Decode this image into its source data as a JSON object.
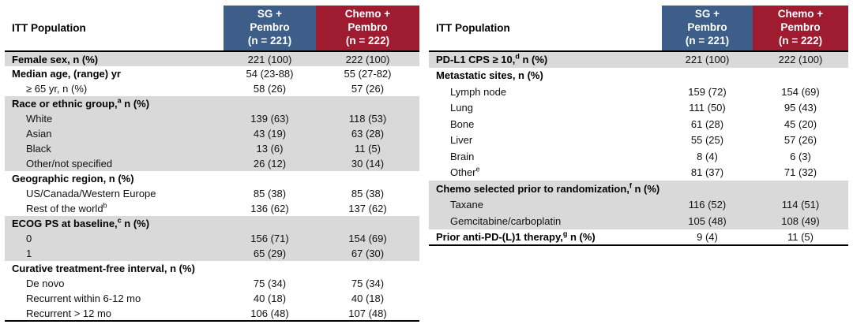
{
  "colors": {
    "arm1_header_bg": "#3E5E8A",
    "arm2_header_bg": "#9E1B30",
    "shade_row_bg": "#D9D9D9",
    "header_text": "#FFFFFF"
  },
  "chart_data": [
    {
      "type": "table",
      "title": "ITT Population — demographics and disease history",
      "header": {
        "population_label": "ITT Population",
        "arm1_label": "SG +\nPembro\n(n = 221)",
        "arm2_label": "Chemo +\nPembro\n(n = 222)"
      },
      "rows": [
        {
          "label": "Female sex, n (%)",
          "bold": true,
          "shade": true,
          "v1": "221 (100)",
          "v2": "222 (100)"
        },
        {
          "label": "Median age, (range) yr",
          "bold": true,
          "v1": "54 (23-88)",
          "v2": "55 (27-82)"
        },
        {
          "label": "≥ 65 yr, n (%)",
          "indent": true,
          "v1": "58 (26)",
          "v2": "57 (26)"
        },
        {
          "label": "Race or ethnic group,",
          "sup": "a",
          "label2": " n (%)",
          "bold": true,
          "shade": true,
          "v1": "",
          "v2": ""
        },
        {
          "label": "White",
          "indent": true,
          "shade": true,
          "v1": "139 (63)",
          "v2": "118 (53)"
        },
        {
          "label": "Asian",
          "indent": true,
          "shade": true,
          "v1": "43 (19)",
          "v2": "63 (28)"
        },
        {
          "label": "Black",
          "indent": true,
          "shade": true,
          "v1": "13 (6)",
          "v2": "11 (5)"
        },
        {
          "label": "Other/not specified",
          "indent": true,
          "shade": true,
          "v1": "26 (12)",
          "v2": "30 (14)"
        },
        {
          "label": "Geographic region, n (%)",
          "bold": true,
          "v1": "",
          "v2": ""
        },
        {
          "label": "US/Canada/Western Europe",
          "indent": true,
          "v1": "85 (38)",
          "v2": "85 (38)"
        },
        {
          "label": "Rest of the world",
          "sup": "b",
          "indent": true,
          "v1": "136 (62)",
          "v2": "137 (62)"
        },
        {
          "label": "ECOG PS at baseline,",
          "sup": "c",
          "label2": " n (%)",
          "bold": true,
          "shade": true,
          "v1": "",
          "v2": ""
        },
        {
          "label": "0",
          "indent": true,
          "shade": true,
          "v1": "156 (71)",
          "v2": "154 (69)"
        },
        {
          "label": "1",
          "indent": true,
          "shade": true,
          "v1": "65 (29)",
          "v2": "67 (30)"
        },
        {
          "label": "Curative treatment-free interval, n (%)",
          "bold": true,
          "v1": "",
          "v2": ""
        },
        {
          "label": "De novo",
          "indent": true,
          "v1": "75 (34)",
          "v2": "75 (34)"
        },
        {
          "label": "Recurrent within 6-12 mo",
          "indent": true,
          "v1": "40 (18)",
          "v2": "40 (18)"
        },
        {
          "label": "Recurrent > 12 mo",
          "indent": true,
          "v1": "106 (48)",
          "v2": "107 (48)"
        }
      ]
    },
    {
      "type": "table",
      "title": "ITT Population — disease characteristics and prior therapy",
      "header": {
        "population_label": "ITT Population",
        "arm1_label": "SG +\nPembro\n(n = 221)",
        "arm2_label": "Chemo +\nPembro\n(n = 222)"
      },
      "rows": [
        {
          "label": "PD-L1 CPS ≥ 10,",
          "sup": "d",
          "label2": " n (%)",
          "bold": true,
          "shade": true,
          "v1": "221 (100)",
          "v2": "222 (100)"
        },
        {
          "label": "Metastatic sites, n (%)",
          "bold": true,
          "v1": "",
          "v2": ""
        },
        {
          "label": "Lymph node",
          "indent": true,
          "v1": "159 (72)",
          "v2": "154 (69)"
        },
        {
          "label": "Lung",
          "indent": true,
          "v1": "111 (50)",
          "v2": "95 (43)"
        },
        {
          "label": "Bone",
          "indent": true,
          "v1": "61 (28)",
          "v2": "45 (20)"
        },
        {
          "label": "Liver",
          "indent": true,
          "v1": "55 (25)",
          "v2": "57 (26)"
        },
        {
          "label": "Brain",
          "indent": true,
          "v1": "8 (4)",
          "v2": "6 (3)"
        },
        {
          "label": "Other",
          "sup": "e",
          "indent": true,
          "v1": "81 (37)",
          "v2": "71 (32)"
        },
        {
          "label": "Chemo selected prior to randomization,",
          "sup": "f",
          "label2": " n (%)",
          "bold": true,
          "shade": true,
          "v1": "",
          "v2": ""
        },
        {
          "label": "Taxane",
          "indent": true,
          "shade": true,
          "v1": "116 (52)",
          "v2": "114 (51)"
        },
        {
          "label": "Gemcitabine/carboplatin",
          "indent": true,
          "shade": true,
          "v1": "105 (48)",
          "v2": "108 (49)"
        },
        {
          "label": "Prior anti-PD-(L)1 therapy,",
          "sup": "g",
          "label2": " n (%)",
          "bold": true,
          "v1": "9 (4)",
          "v2": "11 (5)"
        }
      ]
    }
  ]
}
